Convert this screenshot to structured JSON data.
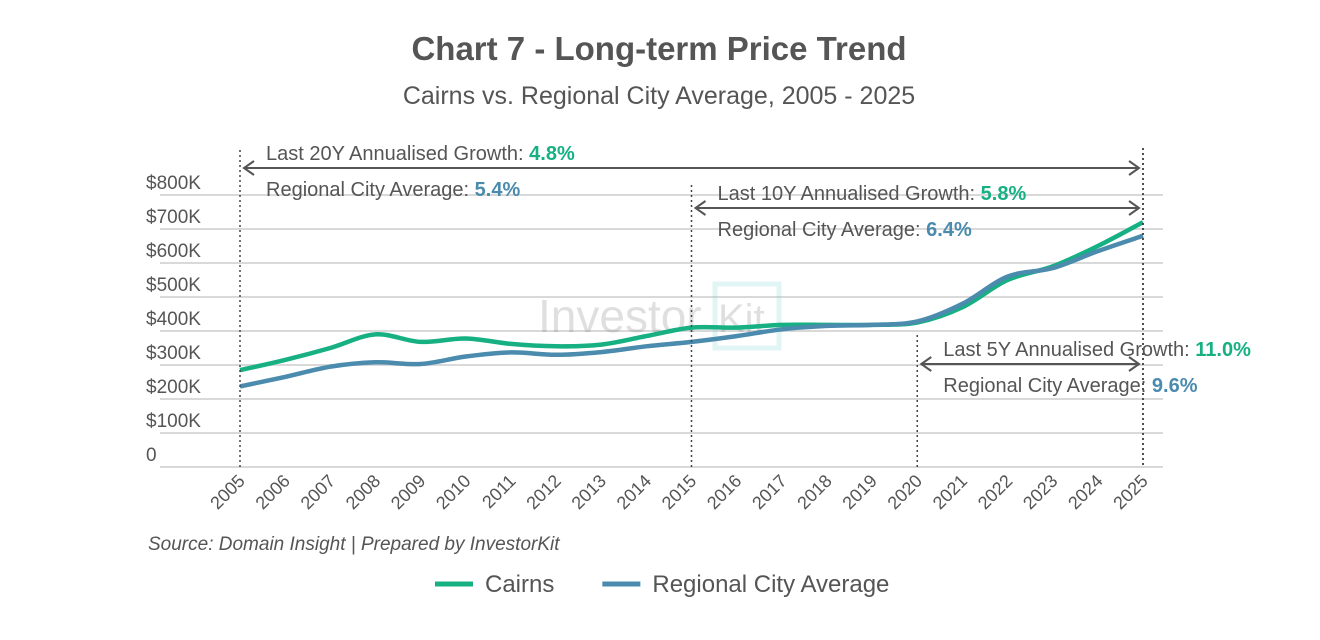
{
  "chart_data": {
    "type": "line",
    "title": "Chart 7 - Long-term Price Trend",
    "subtitle": "Cairns vs. Regional City Average, 2005 - 2025",
    "x": [
      "2005",
      "2006",
      "2007",
      "2008",
      "2009",
      "2010",
      "2011",
      "2012",
      "2013",
      "2014",
      "2015",
      "2016",
      "2017",
      "2018",
      "2019",
      "2020",
      "2021",
      "2022",
      "2023",
      "2024",
      "2025"
    ],
    "y_ticks": [
      "0",
      "$100K",
      "$200K",
      "$300K",
      "$400K",
      "$500K",
      "$600K",
      "$700K",
      "$800K"
    ],
    "ylim": [
      0,
      800000
    ],
    "grid": true,
    "legend_placement": "bottom",
    "series": [
      {
        "name": "Cairns",
        "color": "#16b083",
        "values": [
          285000,
          315000,
          350000,
          390000,
          368000,
          378000,
          362000,
          355000,
          360000,
          385000,
          410000,
          410000,
          418000,
          418000,
          418000,
          425000,
          470000,
          550000,
          590000,
          650000,
          720000
        ]
      },
      {
        "name": "Regional City Average",
        "color": "#4a8bae",
        "values": [
          237000,
          265000,
          295000,
          308000,
          303000,
          325000,
          337000,
          330000,
          338000,
          355000,
          368000,
          385000,
          405000,
          415000,
          418000,
          428000,
          480000,
          560000,
          585000,
          635000,
          680000
        ]
      }
    ],
    "annotations": [
      {
        "from": "2005",
        "to": "2025",
        "label": "Last 20Y Annualised Growth: ",
        "value": "4.8%",
        "avg_label": "Regional City Average: ",
        "avg_value": "5.4%"
      },
      {
        "from": "2015",
        "to": "2025",
        "label": "Last 10Y Annualised Growth: ",
        "value": "5.8%",
        "avg_label": "Regional City Average: ",
        "avg_value": "6.4%"
      },
      {
        "from": "2020",
        "to": "2025",
        "label": "Last 5Y Annualised Growth: ",
        "value": "11.0%",
        "avg_label": "Regional City Average: ",
        "avg_value": "9.6%"
      }
    ],
    "source": "Source: Domain Insight | Prepared by InvestorKit",
    "watermark": "InvestorKit"
  }
}
